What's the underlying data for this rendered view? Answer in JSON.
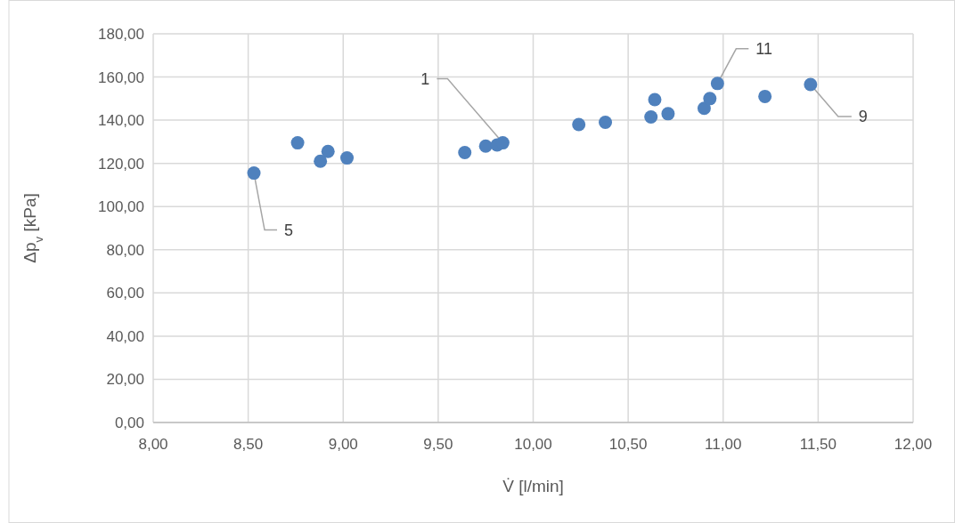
{
  "chart_data": {
    "type": "scatter",
    "xlabel": "V̇ [l/min]",
    "ylabel": "Δp$_{v}$ [kPa]",
    "xlim": [
      8,
      12
    ],
    "ylim": [
      0,
      180
    ],
    "xticks": [
      {
        "value": 8,
        "label": "8,00"
      },
      {
        "value": 8.5,
        "label": "8,50"
      },
      {
        "value": 9,
        "label": "9,00"
      },
      {
        "value": 9.5,
        "label": "9,50"
      },
      {
        "value": 10,
        "label": "10,00"
      },
      {
        "value": 10.5,
        "label": "10,50"
      },
      {
        "value": 11,
        "label": "11,00"
      },
      {
        "value": 11.5,
        "label": "11,50"
      },
      {
        "value": 12,
        "label": "12,00"
      }
    ],
    "yticks": [
      {
        "value": 0,
        "label": "0,00"
      },
      {
        "value": 20,
        "label": "20,00"
      },
      {
        "value": 40,
        "label": "40,00"
      },
      {
        "value": 60,
        "label": "60,00"
      },
      {
        "value": 80,
        "label": "80,00"
      },
      {
        "value": 100,
        "label": "100,00"
      },
      {
        "value": 120,
        "label": "120,00"
      },
      {
        "value": 140,
        "label": "140,00"
      },
      {
        "value": 160,
        "label": "160,00"
      },
      {
        "value": 180,
        "label": "180,00"
      }
    ],
    "grid": true,
    "marker": "circle",
    "annotations": [
      {
        "text": "5",
        "x": 8.53,
        "y": 115.5
      },
      {
        "text": "1",
        "x": 9.84,
        "y": 129.5
      },
      {
        "text": "11",
        "x": 10.97,
        "y": 157
      },
      {
        "text": "9",
        "x": 11.46,
        "y": 156.5
      }
    ],
    "series": [
      {
        "color": "#4f81bd",
        "x": [
          8.53,
          8.76,
          8.88,
          8.92,
          9.02,
          9.64,
          9.75,
          9.81,
          9.84,
          10.24,
          10.38,
          10.62,
          10.64,
          10.71,
          10.9,
          10.93,
          10.97,
          11.22,
          11.46
        ],
        "values": [
          115.5,
          129.5,
          121,
          125.5,
          122.5,
          125,
          128,
          128.5,
          129.5,
          138,
          139,
          141.5,
          149.5,
          143,
          145.5,
          150,
          157,
          151,
          156.5
        ]
      }
    ]
  }
}
